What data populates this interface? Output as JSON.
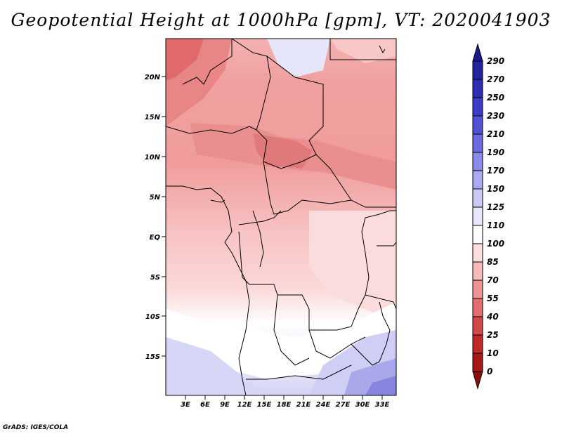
{
  "title": "Geopotential Height at 1000hPa [gpm], VT: 2020041903",
  "credit": "GrADS: IGES/COLA",
  "map": {
    "lat_labels": [
      "20N",
      "15N",
      "10N",
      "5N",
      "EQ",
      "5S",
      "10S",
      "15S"
    ],
    "lon_labels": [
      "3E",
      "6E",
      "9E",
      "12E",
      "15E",
      "18E",
      "21E",
      "24E",
      "27E",
      "30E",
      "33E"
    ]
  },
  "colorbar": {
    "labels": [
      "290",
      "270",
      "250",
      "230",
      "210",
      "190",
      "170",
      "150",
      "125",
      "110",
      "100",
      "85",
      "70",
      "55",
      "40",
      "25",
      "10",
      "0"
    ],
    "colors": [
      "#1b1b8e",
      "#23239f",
      "#2e2eb4",
      "#3c3cc8",
      "#5252d6",
      "#6c6ce0",
      "#8a8ae8",
      "#aaaaf0",
      "#cacaf6",
      "#e8e8fb",
      "#ffffff",
      "#fddede",
      "#f7baba",
      "#ee9494",
      "#e26e6e",
      "#d44848",
      "#c22a2a",
      "#a81818",
      "#8c0e0e"
    ]
  }
}
